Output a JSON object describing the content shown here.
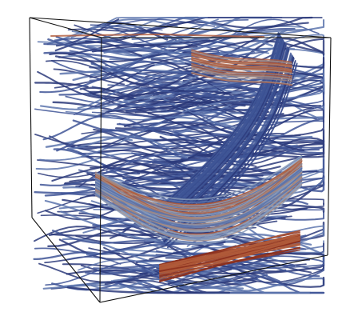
{
  "scene": {
    "background": "#ffffff",
    "box_color": "#111111",
    "colormap": [
      "#2c3a7a",
      "#3f5596",
      "#5c74ad",
      "#8a9bb8",
      "#a68a80",
      "#b05a3a",
      "#8c2f1c"
    ]
  }
}
